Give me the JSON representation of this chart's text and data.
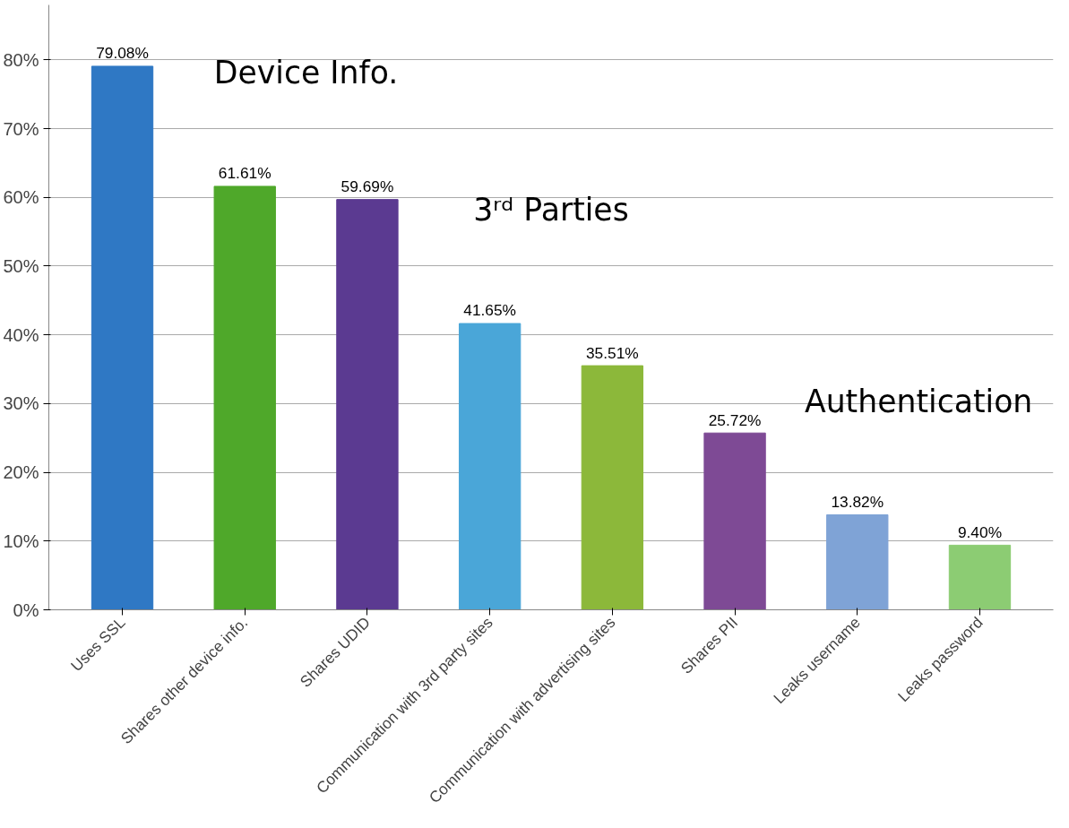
{
  "chart_data": {
    "type": "bar",
    "categories": [
      "Uses SSL",
      "Shares other device info.",
      "Shares UDID",
      "Communication with 3rd party sites",
      "Communication with advertising sites",
      "Shares PII",
      "Leaks username",
      "Leaks password"
    ],
    "values": [
      79.08,
      61.61,
      59.69,
      41.65,
      35.51,
      25.72,
      13.82,
      9.4
    ],
    "value_labels": [
      "79.08%",
      "61.61%",
      "59.69%",
      "41.65%",
      "35.51%",
      "25.72%",
      "13.82%",
      "9.40%"
    ],
    "colors": [
      "#2f78c4",
      "#4fa82a",
      "#5b3a91",
      "#4aa6d8",
      "#8cb83a",
      "#7e4a95",
      "#7fa3d6",
      "#8ccc73"
    ],
    "ylim": [
      0,
      88
    ],
    "yticks": [
      {
        "value": 0,
        "label": "0%"
      },
      {
        "value": 10,
        "label": "10%"
      },
      {
        "value": 20,
        "label": "20%"
      },
      {
        "value": 30,
        "label": "30%"
      },
      {
        "value": 40,
        "label": "40%"
      },
      {
        "value": 50,
        "label": "50%"
      },
      {
        "value": 60,
        "label": "60%"
      },
      {
        "value": 70,
        "label": "70%"
      },
      {
        "value": 80,
        "label": "80%"
      }
    ],
    "grid": "y",
    "annotations": [
      "Device Info.",
      "3ʳᵈ Parties",
      "Authentication"
    ]
  }
}
